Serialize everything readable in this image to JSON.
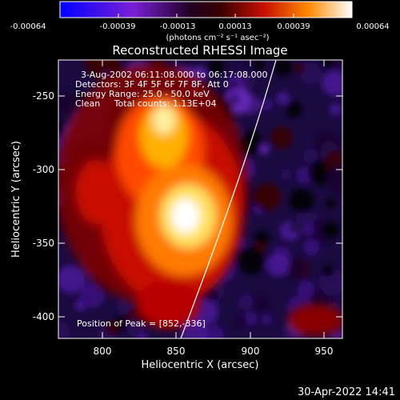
{
  "title": "Reconstructed RHESSI Image",
  "colorbar": {
    "ticks": [
      "-0.00064",
      "-0.00039",
      "-0.00013",
      "0.00013",
      "0.00039",
      "0.00064"
    ],
    "unit_label": "(photons cm⁻² s⁻¹ asec⁻²)",
    "range": [
      -0.00064,
      0.00064
    ],
    "colormap": [
      "#0000ff",
      "#8a2be2",
      "#000000",
      "#b00000",
      "#ff4000",
      "#ffb000",
      "#ffffff"
    ]
  },
  "info": {
    "line1": "3-Aug-2002 06:11:08.000 to 06:17:08.000",
    "line2": "Detectors: 3F 4F 5F 6F 7F 8F, Att 0",
    "line3": "Energy Range: 25.0 - 50.0 keV",
    "line4": "Clean     Total counts: 1.13E+04"
  },
  "peak_label": "Position of Peak = [852,-336]",
  "x_axis": {
    "label": "Heliocentric X (arcsec)",
    "ticks": [
      "800",
      "850",
      "900",
      "950"
    ],
    "range": [
      770,
      962
    ]
  },
  "y_axis": {
    "label": "Heliocentric Y (arcsec)",
    "ticks": [
      "-250",
      "-300",
      "-350",
      "-400"
    ],
    "range": [
      -415,
      -225
    ]
  },
  "timestamp": "30-Apr-2022 14:41"
}
